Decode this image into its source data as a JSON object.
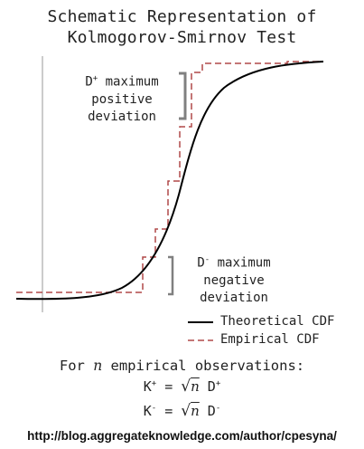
{
  "title": {
    "line1": "Schematic Representation of",
    "line2": "Kolmogorov-Smirnov Test"
  },
  "annotations": {
    "d_plus": {
      "symbol": "D",
      "sup": "+",
      "line1": " maximum",
      "line2": "positive",
      "line3": "deviation"
    },
    "d_minus": {
      "symbol": "D",
      "sup": "-",
      "line1": " maximum",
      "line2": "negative",
      "line3": "deviation"
    }
  },
  "legend": {
    "theoretical": "Theoretical CDF",
    "empirical": "Empirical CDF"
  },
  "colors": {
    "theoretical": "#000000",
    "empirical": "#b04848",
    "brace": "#808080",
    "axis": "#999999"
  },
  "formula": {
    "intro_prefix": "For ",
    "intro_var": "n",
    "intro_suffix": " empirical observations:",
    "k_plus": {
      "k": "K",
      "k_sup": "+",
      "eq": " = ",
      "root": "√",
      "n": "n",
      "d": " D",
      "d_sup": "+"
    },
    "k_minus": {
      "k": "K",
      "k_sup": "-",
      "eq": " = ",
      "root": "√",
      "n": "n",
      "d": " D",
      "d_sup": "-"
    }
  },
  "source_url": "http://blog.aggregateknowledge.com/author/cpesyna/"
}
